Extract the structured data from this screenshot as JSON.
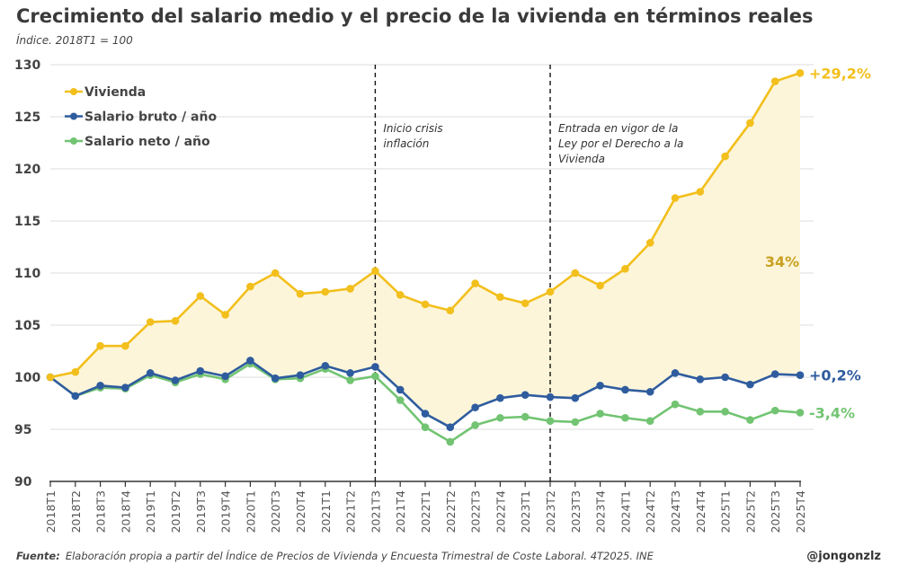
{
  "title": "Crecimiento del salario medio y el precio de la vivienda en términos reales",
  "subtitle": "Índice. 2018T1 = 100",
  "source_label": "Fuente:",
  "source_text": "Elaboración propia a partir del Índice de Precios de Vivienda y Encuesta Trimestral de Coste Laboral. 4T2025. INE",
  "credit": "@jongonzlz",
  "chart_data": {
    "type": "line",
    "title": "Crecimiento del salario medio y el precio de la vivienda en términos reales",
    "ylabel": "Índice. 2018T1 = 100",
    "ylim": [
      90,
      130
    ],
    "yticks": [
      90,
      95,
      100,
      105,
      110,
      115,
      120,
      125,
      130
    ],
    "grid": true,
    "legend": "top-left",
    "x": [
      "2018T1",
      "2018T2",
      "2018T3",
      "2018T4",
      "2019T1",
      "2019T2",
      "2019T3",
      "2019T4",
      "2020T1",
      "2020T3",
      "2020T4",
      "2021T1",
      "2021T2",
      "2021T3",
      "2021T4",
      "2022T1",
      "2022T2",
      "2022T3",
      "2022T4",
      "2023T1",
      "2023T2",
      "2023T3",
      "2023T4",
      "2024T1",
      "2024T2",
      "2024T3",
      "2024T4",
      "2025T1",
      "2025T2",
      "2025T3",
      "2025T4"
    ],
    "series": [
      {
        "name": "Vivienda",
        "color": "#f2bf1c",
        "end_label": "+29,2%",
        "values": [
          100,
          100.5,
          103.0,
          103.0,
          105.3,
          105.4,
          107.8,
          106.0,
          108.7,
          110.0,
          108.0,
          108.2,
          108.5,
          110.2,
          107.9,
          107.0,
          106.4,
          109.0,
          107.7,
          107.1,
          108.2,
          110.0,
          108.8,
          110.4,
          112.9,
          117.2,
          117.8,
          121.2,
          124.4,
          128.4,
          129.2
        ]
      },
      {
        "name": "Salario bruto / año",
        "color": "#2f5c9e",
        "end_label": "+0,2%",
        "values": [
          100,
          98.2,
          99.2,
          99.0,
          100.4,
          99.7,
          100.6,
          100.1,
          101.6,
          99.9,
          100.2,
          101.1,
          100.4,
          101.0,
          98.8,
          96.5,
          95.2,
          97.1,
          98.0,
          98.3,
          98.1,
          98.0,
          99.2,
          98.8,
          98.6,
          100.4,
          99.8,
          100.0,
          99.3,
          100.3,
          100.2
        ]
      },
      {
        "name": "Salario neto / año",
        "color": "#72c472",
        "end_label": "-3,4%",
        "values": [
          100,
          98.2,
          99.0,
          98.9,
          100.2,
          99.5,
          100.3,
          99.8,
          101.3,
          99.8,
          99.9,
          100.8,
          99.7,
          100.1,
          97.8,
          95.2,
          93.8,
          95.4,
          96.1,
          96.2,
          95.8,
          95.7,
          96.5,
          96.1,
          95.8,
          97.4,
          96.7,
          96.7,
          95.9,
          96.8,
          96.6
        ]
      }
    ],
    "gap_fill_color": "#fdf5d9",
    "gap_label": "34%",
    "gap_label_color": "#c9a020",
    "annotations": [
      {
        "x": "2021T3",
        "text_lines": [
          "Inicio crisis",
          "inflación"
        ]
      },
      {
        "x": "2023T2",
        "text_lines": [
          "Entrada en vigor de la",
          "Ley por el Derecho a la",
          "Vivienda"
        ]
      }
    ]
  }
}
